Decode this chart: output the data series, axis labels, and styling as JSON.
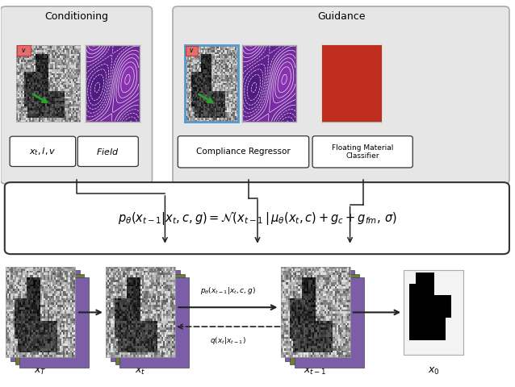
{
  "white": "#ffffff",
  "green_arrow": "#2ca02c",
  "red_box": "#e87070",
  "blue_border": "#5599cc",
  "purple_color": "#7b5ea7",
  "olive_color": "#6b7c3a",
  "dark_line": "#222222",
  "label_cond": "Conditioning",
  "label_guid": "Guidance",
  "label_comp": "Compliance Regressor",
  "label_float": "Floating Material\nClassifier",
  "label_xT": "$x_T$",
  "label_xt": "$x_t$",
  "label_xt1": "$x_{t-1}$",
  "label_x0": "$x_0$",
  "label_forward": "$p_{\\theta}(x_{t-1}|x_t, c, g)$",
  "label_backward": "$q(x_t|x_{t-1})$"
}
